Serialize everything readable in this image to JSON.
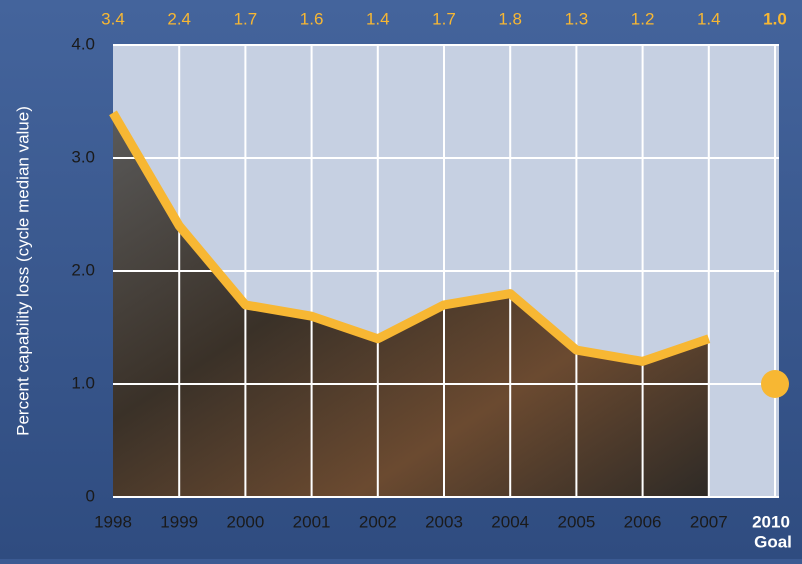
{
  "chart_data": {
    "type": "line",
    "y_label": "Percent capability loss (cycle median value)",
    "categories": [
      "1998",
      "1999",
      "2000",
      "2001",
      "2002",
      "2003",
      "2004",
      "2005",
      "2006",
      "2007",
      "2010"
    ],
    "goal_label": "Goal",
    "series": [
      {
        "color": "#f7b733",
        "values": [
          3.4,
          2.4,
          1.7,
          1.6,
          1.4,
          1.7,
          1.8,
          1.3,
          1.2,
          1.4,
          null
        ],
        "value_labels": [
          "3.4",
          "2.4",
          "1.7",
          "1.6",
          "1.4",
          "1.7",
          "1.8",
          "1.3",
          "1.2",
          "1.4",
          null
        ]
      },
      {
        "color": "#f7b733",
        "values": [
          null,
          null,
          null,
          null,
          null,
          null,
          null,
          null,
          null,
          null,
          1.0
        ],
        "value_labels": [
          null,
          null,
          null,
          null,
          null,
          null,
          null,
          null,
          null,
          null,
          "1.0"
        ]
      }
    ],
    "ylim": [
      0,
      4
    ],
    "yticks": [
      0,
      {
        "value": 1,
        "label": "1.0"
      },
      {
        "value": 2,
        "label": "2.0"
      },
      {
        "value": 3,
        "label": "3.0"
      },
      {
        "value": 4,
        "label": "4.0"
      }
    ],
    "grid": true
  }
}
